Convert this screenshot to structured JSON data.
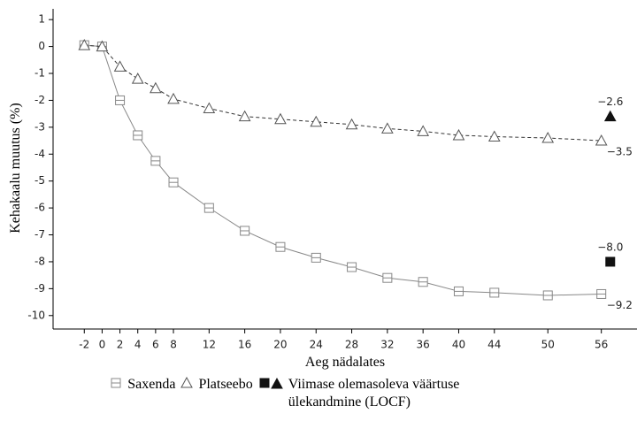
{
  "chart_data": {
    "type": "line",
    "y_label": "Kehakaalu muutus (%)",
    "x_label": "Aeg nädalates",
    "xlim": [
      -5.5,
      60
    ],
    "ylim": [
      -10.5,
      1.4
    ],
    "xticks": [
      -2,
      0,
      2,
      4,
      6,
      8,
      12,
      16,
      20,
      24,
      28,
      32,
      36,
      40,
      44,
      50,
      56
    ],
    "yticks": [
      1,
      0,
      -1,
      -2,
      -3,
      -4,
      -5,
      -6,
      -7,
      -8,
      -9,
      -10
    ],
    "x": [
      -2,
      0,
      2,
      4,
      6,
      8,
      12,
      16,
      20,
      24,
      28,
      32,
      36,
      40,
      44,
      50,
      56
    ],
    "series": [
      {
        "name": "Saxenda",
        "color": "#888888",
        "marker": "square",
        "dash": false,
        "values": [
          0.05,
          0,
          -2.0,
          -3.3,
          -4.25,
          -5.05,
          -6.0,
          -6.85,
          -7.45,
          -7.85,
          -8.2,
          -8.6,
          -8.75,
          -9.1,
          -9.15,
          -9.25,
          -9.2
        ],
        "value_labels": [
          null,
          null,
          null,
          null,
          null,
          null,
          null,
          null,
          null,
          null,
          null,
          null,
          null,
          null,
          null,
          null,
          "−9.2"
        ]
      },
      {
        "name": "Platseebo",
        "color": "#555555",
        "marker": "triangle",
        "dash": true,
        "values": [
          0.05,
          0,
          -0.75,
          -1.2,
          -1.55,
          -1.95,
          -2.3,
          -2.6,
          -2.7,
          -2.8,
          -2.9,
          -3.05,
          -3.15,
          -3.3,
          -3.35,
          -3.4,
          -3.5
        ],
        "value_labels": [
          null,
          null,
          null,
          null,
          null,
          null,
          null,
          null,
          null,
          null,
          null,
          null,
          null,
          null,
          null,
          null,
          "−3.5"
        ]
      }
    ],
    "locf": {
      "name": "Viimase olemasoleva väärtuse ülekandmine (LOCF)",
      "color": "#111111",
      "x": [
        57,
        57
      ],
      "values": [
        -8.0,
        -2.6
      ],
      "markers": [
        "square",
        "triangle"
      ],
      "value_labels": [
        "−8.0",
        "−2.6"
      ]
    }
  }
}
